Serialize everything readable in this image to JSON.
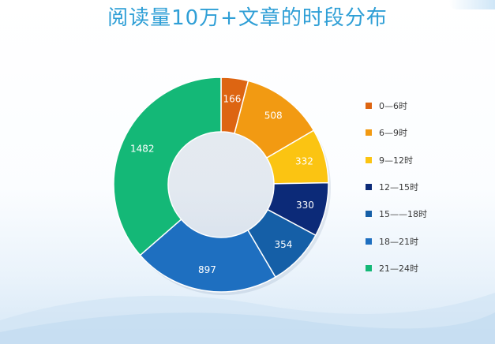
{
  "title": "阅读量10万+文章的时段分布",
  "chart_data": {
    "type": "pie",
    "title": "阅读量10万+文章的时段分布",
    "categories": [
      "0—6时",
      "6—9时",
      "9—12时",
      "12—15时",
      "15——18时",
      "18—21时",
      "21—24时"
    ],
    "values": [
      166,
      508,
      332,
      330,
      354,
      897,
      1482
    ],
    "colors": [
      "#dd6512",
      "#f29a12",
      "#fbc412",
      "#0c2a78",
      "#155fa7",
      "#1e6fc0",
      "#14b877"
    ],
    "legend": "right",
    "donut": true
  }
}
